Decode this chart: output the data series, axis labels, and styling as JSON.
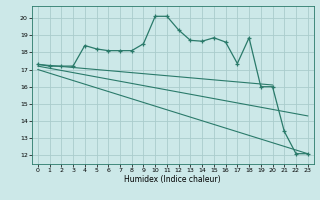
{
  "title": "",
  "xlabel": "Humidex (Indice chaleur)",
  "xlim": [
    -0.5,
    23.5
  ],
  "ylim": [
    11.5,
    20.7
  ],
  "yticks": [
    12,
    13,
    14,
    15,
    16,
    17,
    18,
    19,
    20
  ],
  "xticks": [
    0,
    1,
    2,
    3,
    4,
    5,
    6,
    7,
    8,
    9,
    10,
    11,
    12,
    13,
    14,
    15,
    16,
    17,
    18,
    19,
    20,
    21,
    22,
    23
  ],
  "background_color": "#cce8e8",
  "grid_color": "#aacccc",
  "line_color": "#2a7a6a",
  "curve_x": [
    0,
    1,
    2,
    3,
    4,
    5,
    6,
    7,
    8,
    9,
    10,
    11,
    12,
    13,
    14,
    15,
    16,
    17,
    18,
    19,
    20,
    21,
    22,
    23
  ],
  "curve_y": [
    17.3,
    17.2,
    17.2,
    17.2,
    18.4,
    18.2,
    18.1,
    18.1,
    18.1,
    18.5,
    20.1,
    20.1,
    19.3,
    18.7,
    18.65,
    18.85,
    18.6,
    17.35,
    18.85,
    16.0,
    16.0,
    13.4,
    12.1,
    12.1
  ],
  "trend1_x": [
    0,
    20
  ],
  "trend1_y": [
    17.3,
    16.1
  ],
  "trend2_x": [
    0,
    23
  ],
  "trend2_y": [
    17.2,
    14.3
  ],
  "trend3_x": [
    0,
    23
  ],
  "trend3_y": [
    17.0,
    12.1
  ]
}
